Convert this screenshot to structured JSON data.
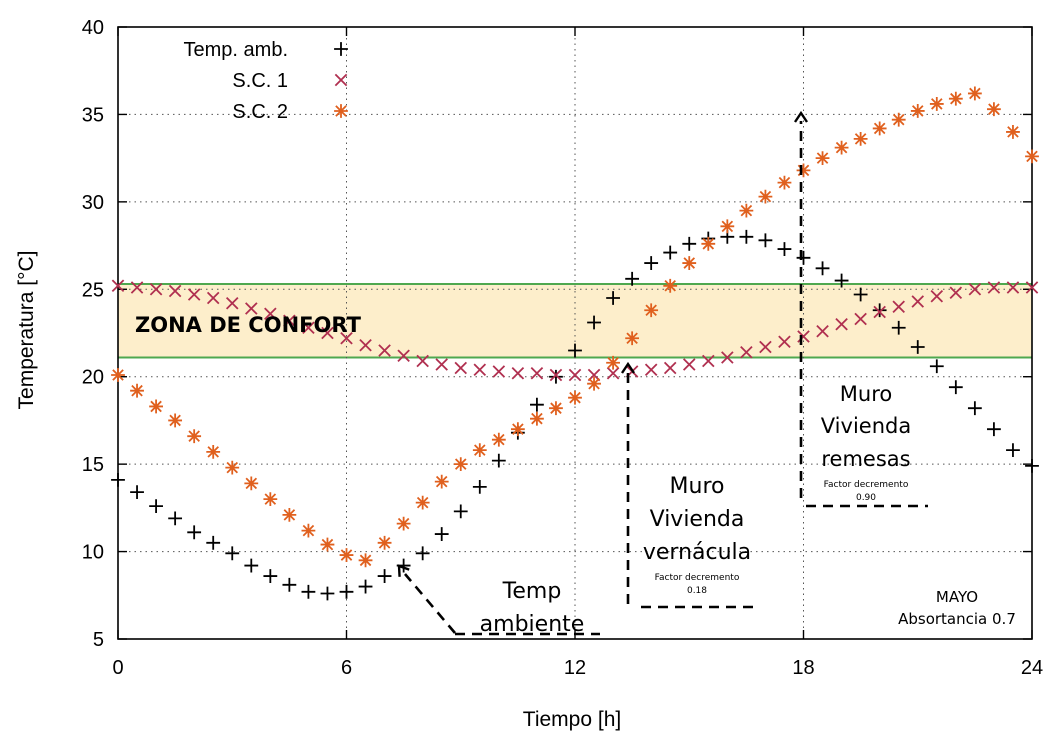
{
  "chart_data": {
    "type": "scatter",
    "xlabel": "Tiempo [h]",
    "ylabel": "Temperatura [°C]",
    "xlim": [
      0,
      24
    ],
    "ylim": [
      5,
      40
    ],
    "xticks": [
      "0",
      "6",
      "12",
      "18",
      "24"
    ],
    "yticks": [
      "5",
      "10",
      "15",
      "20",
      "25",
      "30",
      "35",
      "40"
    ],
    "grid": "dotted",
    "legend": {
      "placement": "top-left",
      "entries": [
        "Temp. amb.",
        "S.C. 1",
        "S.C. 2"
      ]
    },
    "series": [
      {
        "name": "Temp. amb.",
        "marker": "plus",
        "color": "#000000",
        "points": [
          [
            0,
            14.1
          ],
          [
            0.5,
            13.4
          ],
          [
            1,
            12.6
          ],
          [
            1.5,
            11.9
          ],
          [
            2,
            11.1
          ],
          [
            2.5,
            10.5
          ],
          [
            3,
            9.9
          ],
          [
            3.5,
            9.2
          ],
          [
            4,
            8.6
          ],
          [
            4.5,
            8.1
          ],
          [
            5,
            7.7
          ],
          [
            5.5,
            7.6
          ],
          [
            6,
            7.7
          ],
          [
            6.5,
            8.0
          ],
          [
            7,
            8.6
          ],
          [
            7.5,
            9.2
          ],
          [
            8,
            9.9
          ],
          [
            8.5,
            11.0
          ],
          [
            9,
            12.3
          ],
          [
            9.5,
            13.7
          ],
          [
            10,
            15.2
          ],
          [
            10.5,
            16.8
          ],
          [
            11,
            18.4
          ],
          [
            11.5,
            20.0
          ],
          [
            12,
            21.5
          ],
          [
            12.5,
            23.1
          ],
          [
            13,
            24.5
          ],
          [
            13.5,
            25.6
          ],
          [
            14,
            26.5
          ],
          [
            14.5,
            27.1
          ],
          [
            15,
            27.6
          ],
          [
            15.5,
            27.9
          ],
          [
            16,
            28.0
          ],
          [
            16.5,
            28.0
          ],
          [
            17,
            27.8
          ],
          [
            17.5,
            27.3
          ],
          [
            18,
            26.8
          ],
          [
            18.5,
            26.2
          ],
          [
            19,
            25.5
          ],
          [
            19.5,
            24.7
          ],
          [
            20,
            23.8
          ],
          [
            20.5,
            22.8
          ],
          [
            21,
            21.7
          ],
          [
            21.5,
            20.6
          ],
          [
            22,
            19.4
          ],
          [
            22.5,
            18.2
          ],
          [
            23,
            17.0
          ],
          [
            23.5,
            15.8
          ],
          [
            24,
            14.9
          ]
        ]
      },
      {
        "name": "S.C. 1",
        "marker": "cross",
        "color": "#b03050",
        "points": [
          [
            0,
            25.2
          ],
          [
            0.5,
            25.1
          ],
          [
            1,
            25.0
          ],
          [
            1.5,
            24.9
          ],
          [
            2,
            24.7
          ],
          [
            2.5,
            24.5
          ],
          [
            3,
            24.2
          ],
          [
            3.5,
            23.9
          ],
          [
            4,
            23.6
          ],
          [
            4.5,
            23.2
          ],
          [
            5,
            22.8
          ],
          [
            5.5,
            22.5
          ],
          [
            6,
            22.2
          ],
          [
            6.5,
            21.8
          ],
          [
            7,
            21.5
          ],
          [
            7.5,
            21.2
          ],
          [
            8,
            20.9
          ],
          [
            8.5,
            20.7
          ],
          [
            9,
            20.5
          ],
          [
            9.5,
            20.4
          ],
          [
            10,
            20.3
          ],
          [
            10.5,
            20.2
          ],
          [
            11,
            20.2
          ],
          [
            11.5,
            20.1
          ],
          [
            12,
            20.1
          ],
          [
            12.5,
            20.1
          ],
          [
            13,
            20.2
          ],
          [
            13.5,
            20.3
          ],
          [
            14,
            20.4
          ],
          [
            14.5,
            20.5
          ],
          [
            15,
            20.7
          ],
          [
            15.5,
            20.9
          ],
          [
            16,
            21.1
          ],
          [
            16.5,
            21.4
          ],
          [
            17,
            21.7
          ],
          [
            17.5,
            22.0
          ],
          [
            18,
            22.3
          ],
          [
            18.5,
            22.6
          ],
          [
            19,
            23.0
          ],
          [
            19.5,
            23.3
          ],
          [
            20,
            23.7
          ],
          [
            20.5,
            24.0
          ],
          [
            21,
            24.3
          ],
          [
            21.5,
            24.6
          ],
          [
            22,
            24.8
          ],
          [
            22.5,
            25.0
          ],
          [
            23,
            25.1
          ],
          [
            23.5,
            25.1
          ],
          [
            24,
            25.1
          ]
        ]
      },
      {
        "name": "S.C. 2",
        "marker": "star",
        "color": "#e0601e",
        "points": [
          [
            0,
            20.1
          ],
          [
            0.5,
            19.2
          ],
          [
            1,
            18.3
          ],
          [
            1.5,
            17.5
          ],
          [
            2,
            16.6
          ],
          [
            2.5,
            15.7
          ],
          [
            3,
            14.8
          ],
          [
            3.5,
            13.9
          ],
          [
            4,
            13.0
          ],
          [
            4.5,
            12.1
          ],
          [
            5,
            11.2
          ],
          [
            5.5,
            10.4
          ],
          [
            6,
            9.8
          ],
          [
            6.5,
            9.5
          ],
          [
            7,
            10.5
          ],
          [
            7.5,
            11.6
          ],
          [
            8,
            12.8
          ],
          [
            8.5,
            14.0
          ],
          [
            9,
            15.0
          ],
          [
            9.5,
            15.8
          ],
          [
            10,
            16.4
          ],
          [
            10.5,
            17.0
          ],
          [
            11,
            17.6
          ],
          [
            11.5,
            18.2
          ],
          [
            12,
            18.8
          ],
          [
            12.5,
            19.6
          ],
          [
            13,
            20.8
          ],
          [
            13.5,
            22.2
          ],
          [
            14,
            23.8
          ],
          [
            14.5,
            25.2
          ],
          [
            15,
            26.5
          ],
          [
            15.5,
            27.6
          ],
          [
            16,
            28.6
          ],
          [
            16.5,
            29.5
          ],
          [
            17,
            30.3
          ],
          [
            17.5,
            31.1
          ],
          [
            18,
            31.8
          ],
          [
            18.5,
            32.5
          ],
          [
            19,
            33.1
          ],
          [
            19.5,
            33.6
          ],
          [
            20,
            34.2
          ],
          [
            20.5,
            34.7
          ],
          [
            21,
            35.2
          ],
          [
            21.5,
            35.6
          ],
          [
            22,
            35.9
          ],
          [
            22.5,
            36.2
          ],
          [
            23,
            35.3
          ],
          [
            23.5,
            34.0
          ],
          [
            24,
            32.6
          ]
        ]
      }
    ],
    "comfort_zone": {
      "label": "ZONA DE CONFORT",
      "y_min": 21.1,
      "y_max": 25.3,
      "fill": "#fdeecb",
      "border": "#4fa84f"
    },
    "annotations": {
      "ambient": {
        "lines": [
          "Temp",
          "ambiente"
        ]
      },
      "vernacula": {
        "lines": [
          "Muro",
          "Vivienda",
          "vernácula"
        ],
        "small": [
          "Factor decremento",
          "0.18"
        ]
      },
      "remesas": {
        "lines": [
          "Muro",
          "Vivienda",
          "remesas"
        ],
        "small": [
          "Factor decremento",
          "0.90"
        ]
      },
      "month": {
        "lines": [
          "MAYO",
          "Absortancia 0.7"
        ]
      }
    }
  }
}
